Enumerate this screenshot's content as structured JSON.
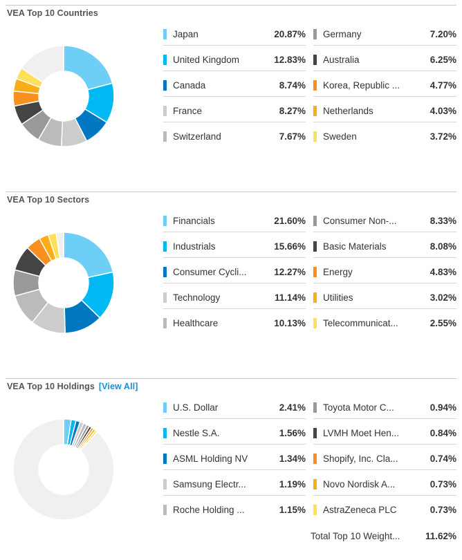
{
  "colors": {
    "palette": [
      "#6dcff6",
      "#00b9f2",
      "#0078c1",
      "#cccccc",
      "#bbbbbb",
      "#999999",
      "#444444",
      "#f7901e",
      "#fbad18",
      "#ffe05a"
    ],
    "remainder": "#f0f0f0"
  },
  "sections": [
    {
      "title": "VEA Top 10 Countries",
      "link": "",
      "chart_data": {
        "type": "pie",
        "categories": [
          "Japan",
          "United Kingdom",
          "Canada",
          "France",
          "Switzerland",
          "Germany",
          "Australia",
          "Korea, Republic ...",
          "Netherlands",
          "Sweden"
        ],
        "values": [
          20.87,
          12.83,
          8.74,
          8.27,
          7.67,
          7.2,
          6.25,
          4.77,
          4.03,
          3.72
        ],
        "display_values": [
          "20.87%",
          "12.83%",
          "8.74%",
          "8.27%",
          "7.67%",
          "7.20%",
          "6.25%",
          "4.77%",
          "4.03%",
          "3.72%"
        ]
      }
    },
    {
      "title": "VEA Top 10 Sectors",
      "link": "",
      "chart_data": {
        "type": "pie",
        "categories": [
          "Financials",
          "Industrials",
          "Consumer Cycli...",
          "Technology",
          "Healthcare",
          "Consumer Non-...",
          "Basic Materials",
          "Energy",
          "Utilities",
          "Telecommunicat..."
        ],
        "values": [
          21.6,
          15.66,
          12.27,
          11.14,
          10.13,
          8.33,
          8.08,
          4.83,
          3.02,
          2.55
        ],
        "display_values": [
          "21.60%",
          "15.66%",
          "12.27%",
          "11.14%",
          "10.13%",
          "8.33%",
          "8.08%",
          "4.83%",
          "3.02%",
          "2.55%"
        ]
      }
    },
    {
      "title": "VEA Top 10 Holdings",
      "link": "[View All]",
      "chart_data": {
        "type": "pie",
        "categories": [
          "U.S. Dollar",
          "Nestle S.A.",
          "ASML Holding NV",
          "Samsung Electr...",
          "Roche Holding ...",
          "Toyota Motor C...",
          "LVMH Moet Hen...",
          "Shopify, Inc. Cla...",
          "Novo Nordisk A...",
          "AstraZeneca PLC"
        ],
        "values": [
          2.41,
          1.56,
          1.34,
          1.19,
          1.15,
          0.94,
          0.84,
          0.74,
          0.73,
          0.73
        ],
        "display_values": [
          "2.41%",
          "1.56%",
          "1.34%",
          "1.19%",
          "1.15%",
          "0.94%",
          "0.84%",
          "0.74%",
          "0.73%",
          "0.73%"
        ]
      },
      "total": {
        "label": "Total Top 10 Weight...",
        "value": "11.62%"
      }
    }
  ]
}
